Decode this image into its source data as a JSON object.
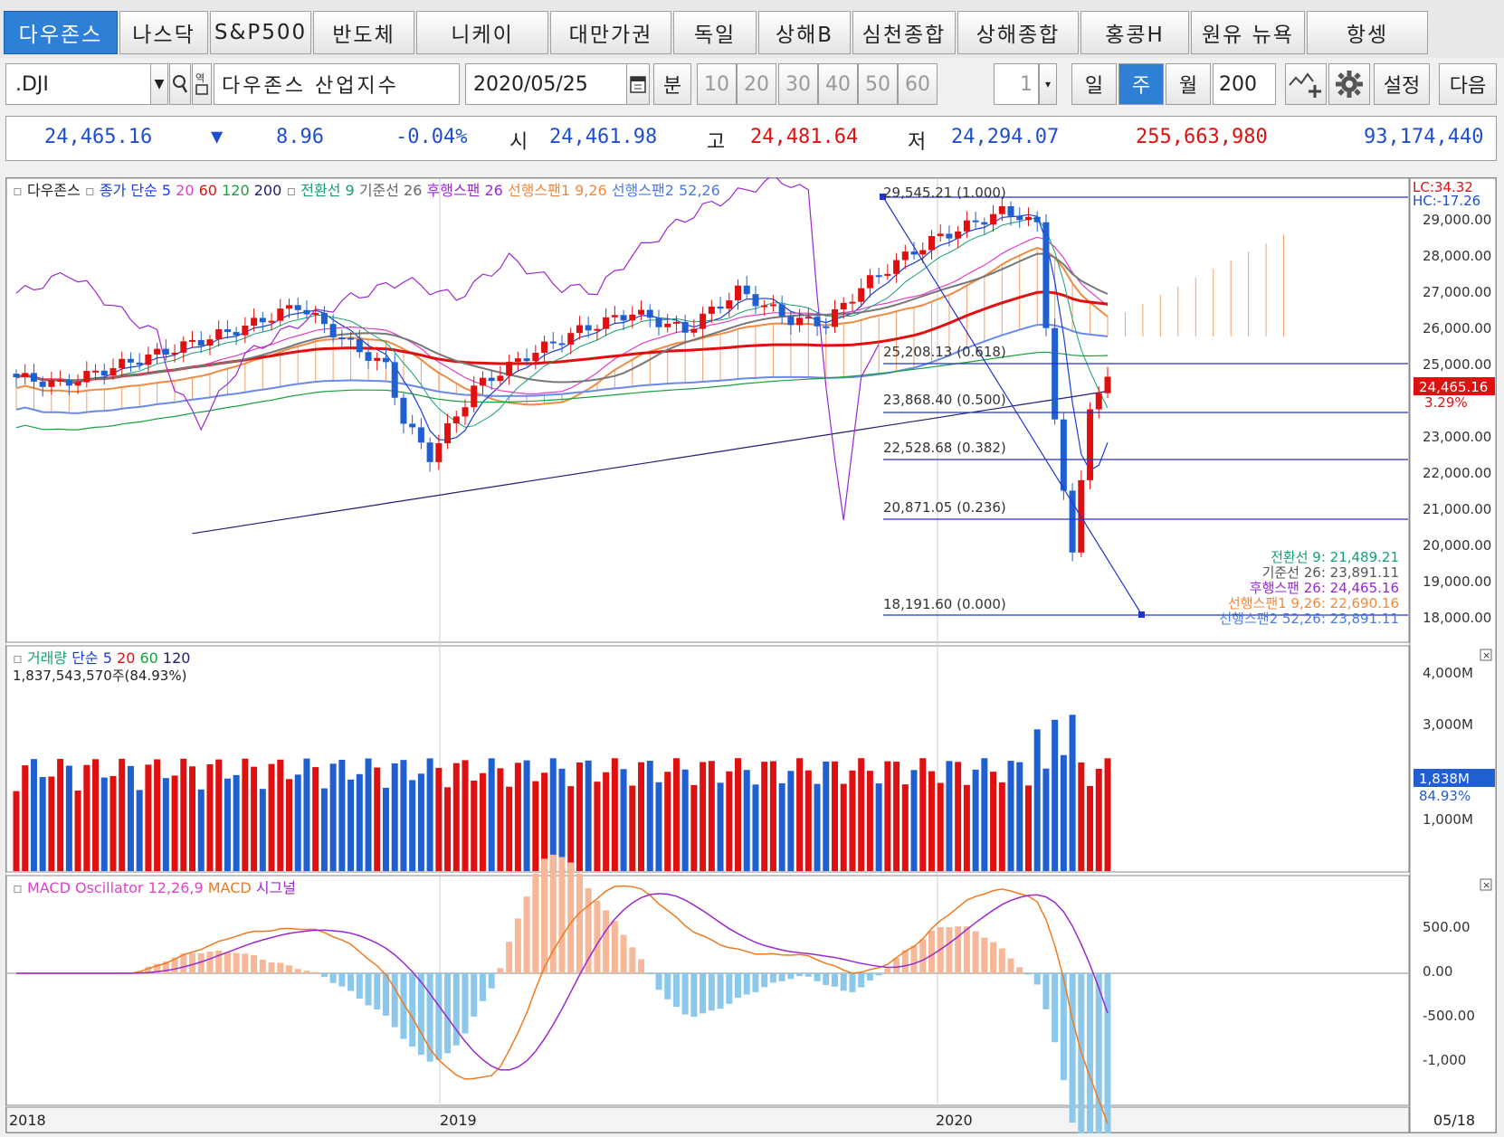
{
  "tabs": [
    {
      "label": "다우존스",
      "active": true
    },
    {
      "label": "나스닥"
    },
    {
      "label": "S&P500"
    },
    {
      "label": "반도체"
    },
    {
      "label": "니케이"
    },
    {
      "label": "대만가권"
    },
    {
      "label": "독일"
    },
    {
      "label": "상해B"
    },
    {
      "label": "심천종합"
    },
    {
      "label": "상해종합"
    },
    {
      "label": "홍콩H"
    },
    {
      "label": "원유 뉴욕"
    },
    {
      "label": "항셍"
    }
  ],
  "toolbar": {
    "symbol": ".DJI",
    "name": "다우존스 산업지수",
    "date": "2020/05/25",
    "minute_label": "분",
    "minute_options": [
      "10",
      "20",
      "30",
      "40",
      "50",
      "60"
    ],
    "count": "1",
    "periods": [
      {
        "label": "일"
      },
      {
        "label": "주",
        "active": true
      },
      {
        "label": "월"
      }
    ],
    "bars": "200",
    "settings_label": "설정",
    "next_label": "다음"
  },
  "quote": {
    "price": "24,465.16",
    "direction": "down",
    "change": "8.96",
    "change_pct": "-0.04%",
    "open_label": "시",
    "open": "24,461.98",
    "high_label": "고",
    "high": "24,481.64",
    "low_label": "저",
    "low": "24,294.07",
    "volume": "255,663,980",
    "amount": "93,174,440"
  },
  "price_panel": {
    "legend": [
      {
        "text": "다우존스",
        "color": "#222222"
      },
      {
        "text": "종가 단순 5",
        "color": "#1a3fd6"
      },
      {
        "text": "20",
        "color": "#e23fc8"
      },
      {
        "text": "60",
        "color": "#e01010"
      },
      {
        "text": "120",
        "color": "#18a040"
      },
      {
        "text": "200",
        "color": "#202070"
      },
      {
        "text": "전환선 9",
        "color": "#18a070"
      },
      {
        "text": "기준선 26",
        "color": "#666666"
      },
      {
        "text": "후행스팬 26",
        "color": "#9a28d0"
      },
      {
        "text": "선행스팬1 9,26",
        "color": "#f08a40"
      },
      {
        "text": "선행스팬2 52,26",
        "color": "#4a7ae0"
      }
    ],
    "lc": "LC:34.32",
    "hc": "HC:-17.26",
    "y_ticks": [
      "29,000.00",
      "28,000.00",
      "27,000.00",
      "26,000.00",
      "25,000.00",
      "23,000.00",
      "22,000.00",
      "21,000.00",
      "20,000.00",
      "19,000.00",
      "18,000.00"
    ],
    "current_price_tag": "24,465.16",
    "current_pct": "3.29%",
    "fib_levels": [
      {
        "label": "29,545.21 (1.000)"
      },
      {
        "label": "25,208.13 (0.618)"
      },
      {
        "label": "23,868.40 (0.500)"
      },
      {
        "label": "22,528.68 (0.382)"
      },
      {
        "label": "20,871.05 (0.236)"
      },
      {
        "label": "18,191.60 (0.000)"
      }
    ],
    "ichimoku_values": [
      {
        "text": "전환선 9: 21,489.21",
        "color": "#18a070"
      },
      {
        "text": "기준선 26: 23,891.11",
        "color": "#555555"
      },
      {
        "text": "후행스팬 26: 24,465.16",
        "color": "#9a28d0"
      },
      {
        "text": "선행스팬1 9,26: 22,690.16",
        "color": "#f08a40"
      },
      {
        "text": "선행스팬2 52,26: 23,891.11",
        "color": "#4a7ae0"
      }
    ]
  },
  "volume_panel": {
    "legend": [
      {
        "text": "거래량",
        "color": "#18a070"
      },
      {
        "text": "단순 5",
        "color": "#1a3fd6"
      },
      {
        "text": "20",
        "color": "#e01010"
      },
      {
        "text": "60",
        "color": "#18a040"
      },
      {
        "text": "120",
        "color": "#202070"
      }
    ],
    "current": "1,837,543,570주(84.93%)",
    "y_ticks": [
      "4,000M",
      "3,000M",
      "1,000M"
    ],
    "tag_value": "1,838M",
    "tag_pct": "84.93%"
  },
  "macd_panel": {
    "legend": [
      {
        "text": "MACD Oscillator 12,26,9",
        "color": "#e23fc8"
      },
      {
        "text": "MACD",
        "color": "#f07a20"
      },
      {
        "text": "시그널",
        "color": "#9a28d0"
      }
    ],
    "y_ticks": [
      "500.00",
      "0.00",
      "-500.00",
      "-1,000"
    ]
  },
  "x_axis": {
    "labels": [
      "2018",
      "2019",
      "2020"
    ],
    "right_label": "05/18"
  },
  "colors": {
    "up": "#e01010",
    "down": "#1f5fd0",
    "accent": "#2e7fd6"
  }
}
